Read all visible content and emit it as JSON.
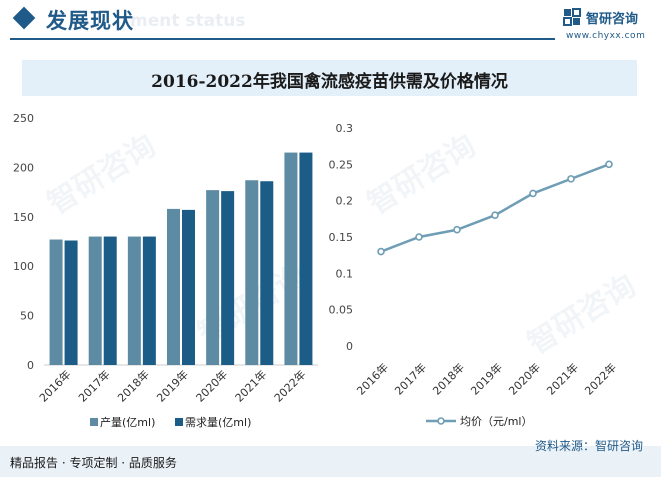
{
  "header": {
    "title": "发展现状",
    "subtitle_bg": "ment status",
    "logo_text": "智研咨询",
    "logo_url": "www.chyxx.com"
  },
  "title": "2016-2022年我国禽流感疫苗供需及价格情况",
  "footer": {
    "left": "精品报告 · 专项定制 · 品质服务",
    "source": "资料来源：智研咨询"
  },
  "watermark": {
    "text": "智研咨询"
  },
  "colors": {
    "production": "#5d8ba3",
    "demand": "#1b5d86",
    "price_line": "#6e9db5",
    "brand": "#1f5a88"
  },
  "chart_data": [
    {
      "type": "bar",
      "categories": [
        "2016年",
        "2017年",
        "2018年",
        "2019年",
        "2020年",
        "2021年",
        "2022年"
      ],
      "series": [
        {
          "name": "产量(亿ml)",
          "values": [
            127,
            130,
            130,
            158,
            177,
            187,
            215
          ]
        },
        {
          "name": "需求量(亿ml)",
          "values": [
            126,
            130,
            130,
            157,
            176,
            186,
            215
          ]
        }
      ],
      "ylim": [
        0,
        250
      ],
      "yticks": [
        0,
        50,
        100,
        150,
        200,
        250
      ],
      "legend": "bottom"
    },
    {
      "type": "line",
      "categories": [
        "2016年",
        "2017年",
        "2018年",
        "2019年",
        "2020年",
        "2021年",
        "2022年"
      ],
      "series": [
        {
          "name": "均价（元/ml）",
          "values": [
            0.13,
            0.15,
            0.16,
            0.18,
            0.21,
            0.23,
            0.25
          ]
        }
      ],
      "ylim": [
        0,
        0.3
      ],
      "yticks": [
        0,
        0.05,
        0.1,
        0.15,
        0.2,
        0.25,
        0.3
      ],
      "ytick_labels": [
        "0",
        "0.05",
        "0.1",
        "0.15",
        "0.2",
        "0.25",
        "0.3"
      ],
      "legend": "bottom"
    }
  ]
}
